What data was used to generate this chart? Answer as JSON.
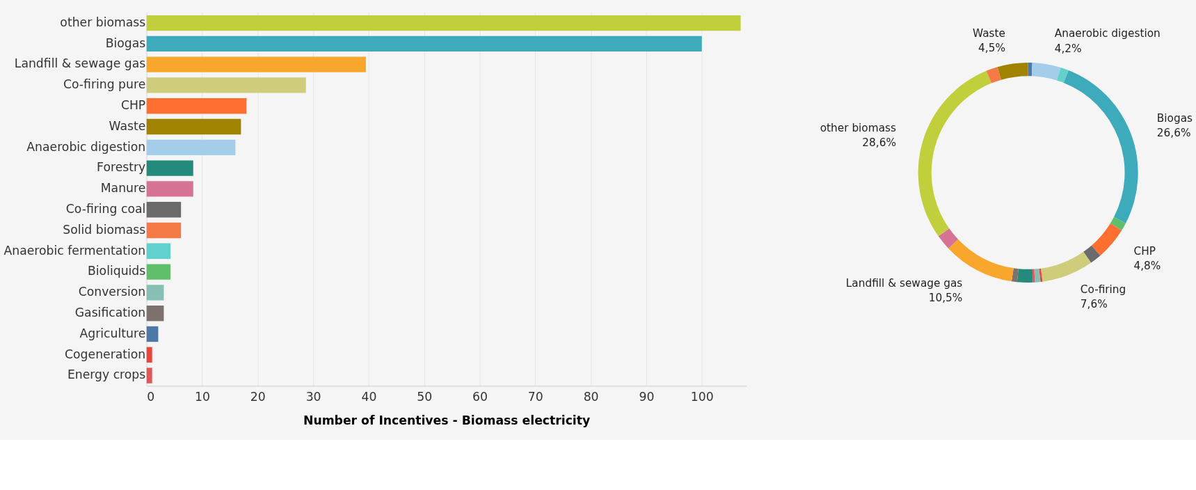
{
  "chart_data": [
    {
      "type": "bar",
      "orientation": "horizontal",
      "xlabel": "Number of Incentives - Biomass electricity",
      "categories": [
        "other biomass",
        "Biogas",
        "Landfill & sewage gas",
        "Co-firing pure",
        "CHP",
        "Waste",
        "Anaerobic digestion",
        "Forestry",
        "Manure",
        "Co-firing coal",
        "Solid biomass",
        "Anaerobic fermentation",
        "Bioliquids",
        "Conversion",
        "Gasification",
        "Agriculture",
        "Cogeneration",
        "Energy crops"
      ],
      "values": [
        107,
        100,
        39.5,
        28.7,
        18,
        17,
        16,
        8.4,
        8.4,
        6.2,
        6.2,
        4.3,
        4.3,
        3.1,
        3.1,
        2.1,
        1,
        1
      ],
      "colors": [
        "#c2cf3d",
        "#3eabbd",
        "#f8a72c",
        "#cfcd7b",
        "#ff6f31",
        "#a08300",
        "#a3cde8",
        "#248a7b",
        "#d67395",
        "#6b6b6b",
        "#f47b45",
        "#62d0cc",
        "#5fbf6b",
        "#88bfb5",
        "#7c716c",
        "#4e79a7",
        "#e8453c",
        "#e15759"
      ],
      "xlim": [
        0,
        108
      ],
      "xticks": [
        0,
        10,
        20,
        30,
        40,
        50,
        60,
        70,
        80,
        90,
        100
      ],
      "grid": "x"
    },
    {
      "type": "donut",
      "categories": [
        null,
        "Anaerobic digestion",
        null,
        "Biogas",
        null,
        "CHP",
        null,
        "Co-firing",
        null,
        null,
        null,
        null,
        null,
        "Landfill & sewage gas",
        null,
        "other biomass",
        null,
        "Waste"
      ],
      "values": [
        0.6,
        4.2,
        1.2,
        26.6,
        1.2,
        4.8,
        1.7,
        7.6,
        0.3,
        0.8,
        0.3,
        2.3,
        0.8,
        10.5,
        2.3,
        28.6,
        1.7,
        4.5
      ],
      "value_labels": [
        null,
        "4,2%",
        null,
        "26,6%",
        null,
        "4,8%",
        null,
        "7,6%",
        null,
        null,
        null,
        null,
        null,
        "10,5%",
        null,
        "28,6%",
        null,
        "4,5%"
      ],
      "colors": [
        "#4e79a7",
        "#a3cde8",
        "#62d0cc",
        "#3eabbd",
        "#5fbf6b",
        "#ff6f31",
        "#6b6b6b",
        "#cfcd7b",
        "#e8453c",
        "#88bfb5",
        "#e15759",
        "#248a7b",
        "#7c716c",
        "#f8a72c",
        "#d67395",
        "#c2cf3d",
        "#f47b45",
        "#a08300"
      ]
    }
  ]
}
